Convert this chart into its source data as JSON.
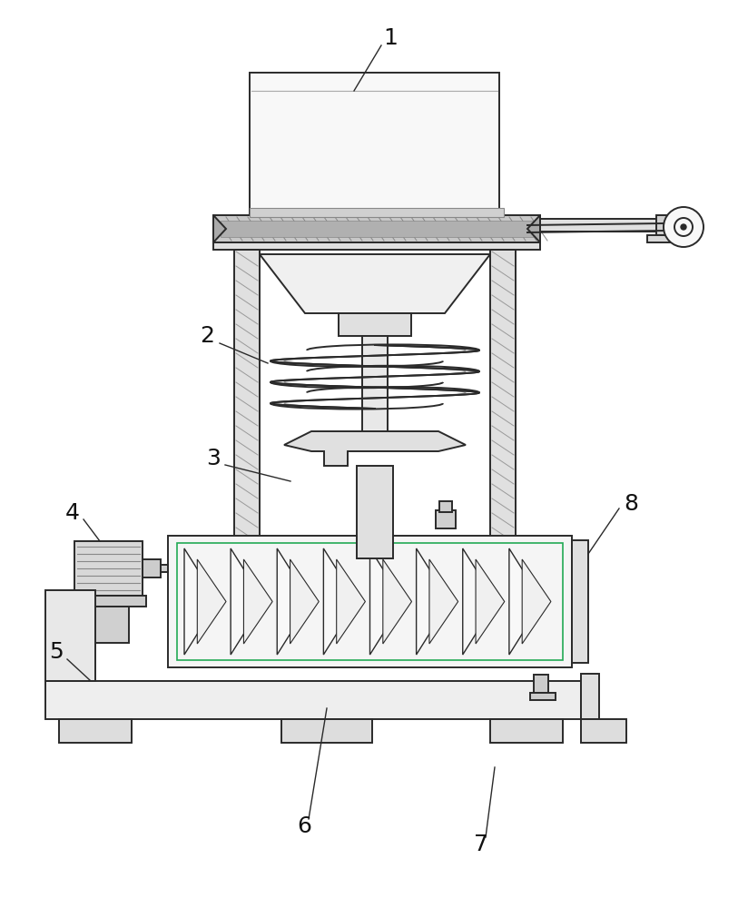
{
  "bg_color": "#ffffff",
  "lc": "#2a2a2a",
  "lc_light": "#888888",
  "fc_white": "#ffffff",
  "fc_light": "#f0f0f0",
  "fc_gray": "#d8d8d8",
  "fc_darkgray": "#cccccc",
  "green": "#22aa55",
  "lw": 1.4,
  "lw_thin": 0.8,
  "lw_thick": 2.0,
  "figsize": [
    8.13,
    10.0
  ],
  "dpi": 100
}
